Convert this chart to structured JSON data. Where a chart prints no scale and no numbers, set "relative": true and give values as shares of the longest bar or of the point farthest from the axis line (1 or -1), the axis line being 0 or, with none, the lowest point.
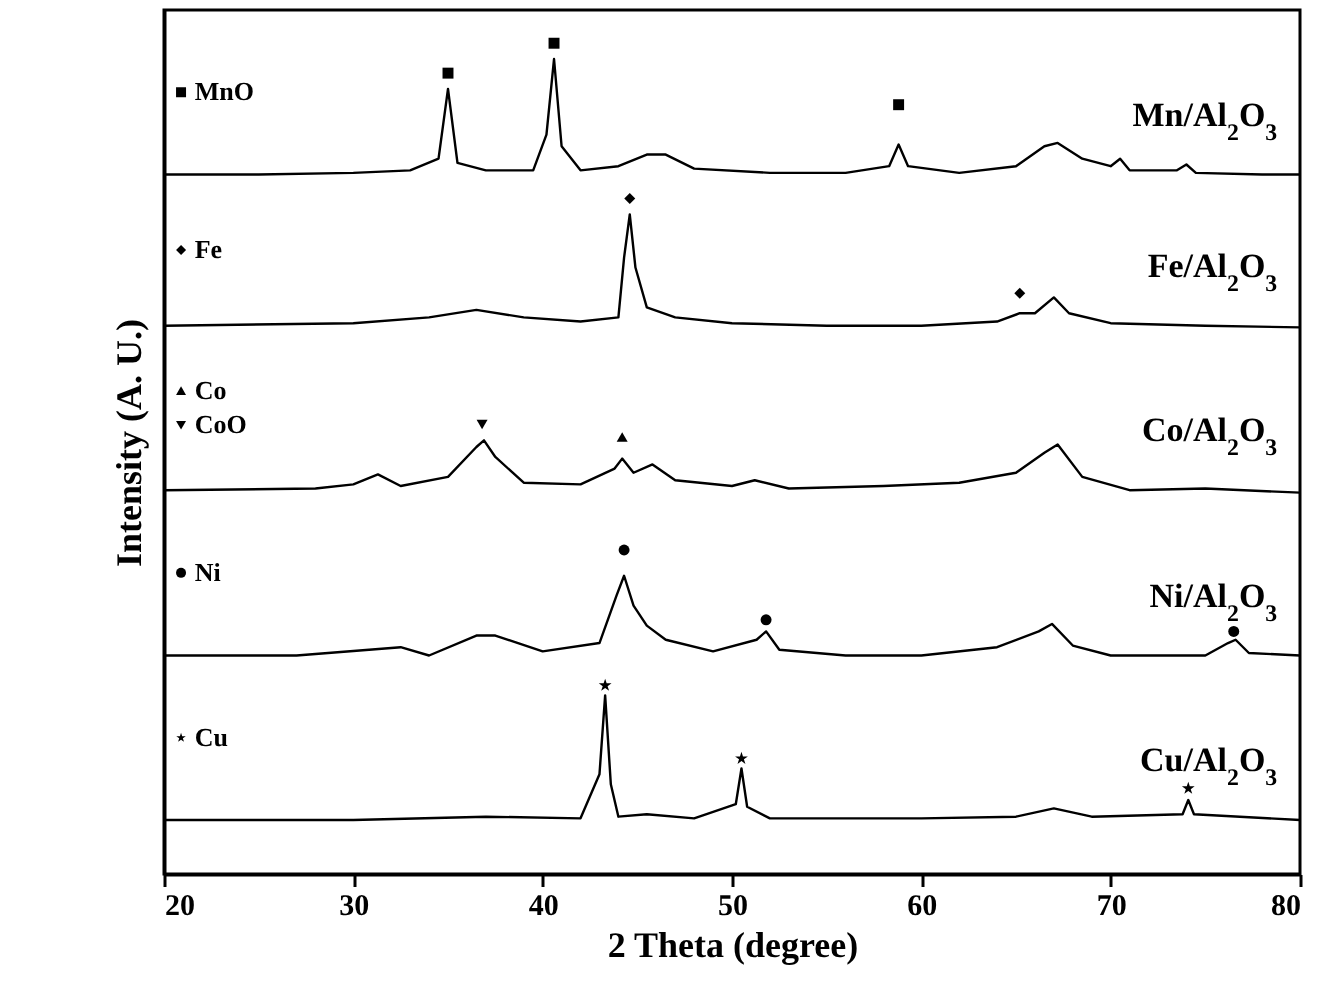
{
  "chart_data": {
    "type": "line",
    "relative": true,
    "xlabel": "2 Theta (degree)",
    "ylabel": "Intensity (A. U.)",
    "xlim": [
      20,
      80
    ],
    "xticks": [
      20,
      30,
      40,
      50,
      60,
      70,
      80
    ],
    "grid": false,
    "legend": "top left",
    "series": [
      {
        "name": "Mn/Al$_{2}$O$_{3}$",
        "type": "line",
        "color": "#000000",
        "x": [
          20,
          25,
          30,
          33,
          34.5,
          35,
          35.5,
          37,
          39.5,
          40.2,
          40.6,
          41,
          42,
          44,
          45.5,
          46.5,
          48,
          52,
          56,
          58.3,
          58.8,
          59.3,
          62,
          65,
          66.5,
          67.2,
          68.5,
          70,
          70.5,
          71,
          73.5,
          74,
          74.5,
          78,
          80
        ],
        "values": [
          0.842,
          0.842,
          0.844,
          0.847,
          0.861,
          0.945,
          0.856,
          0.847,
          0.847,
          0.89,
          0.981,
          0.876,
          0.847,
          0.852,
          0.866,
          0.866,
          0.849,
          0.844,
          0.844,
          0.852,
          0.878,
          0.852,
          0.844,
          0.852,
          0.876,
          0.88,
          0.861,
          0.852,
          0.861,
          0.847,
          0.847,
          0.854,
          0.844,
          0.842,
          0.842
        ]
      },
      {
        "name": "MnO",
        "type": "scatter",
        "marker": "square",
        "color": "#000000",
        "x": [
          35,
          40.6,
          58.8
        ],
        "values": [
          0.964,
          1.0,
          0.926
        ]
      },
      {
        "name": "Fe/Al$_{2}$O$_{3}$",
        "type": "line",
        "color": "#000000",
        "x": [
          20,
          30,
          34,
          36.5,
          39,
          42,
          44,
          44.3,
          44.6,
          44.9,
          45.5,
          47,
          50,
          55,
          60,
          64,
          65.2,
          66,
          67,
          67.8,
          70,
          75,
          80
        ],
        "values": [
          0.66,
          0.663,
          0.67,
          0.679,
          0.67,
          0.665,
          0.67,
          0.742,
          0.794,
          0.73,
          0.682,
          0.67,
          0.663,
          0.66,
          0.66,
          0.665,
          0.675,
          0.675,
          0.694,
          0.675,
          0.663,
          0.66,
          0.658
        ]
      },
      {
        "name": "Fe",
        "type": "scatter",
        "marker": "diamond",
        "color": "#000000",
        "x": [
          44.6,
          65.2
        ],
        "values": [
          0.813,
          0.699
        ]
      },
      {
        "name": "Co/Al$_{2}$O$_{3}$",
        "type": "line",
        "color": "#000000",
        "x": [
          20,
          28,
          30,
          31.3,
          32.5,
          35,
          36.5,
          36.9,
          37.5,
          39,
          42,
          43.8,
          44.2,
          44.8,
          45.8,
          47,
          50,
          51.2,
          53,
          58,
          62,
          65,
          66.5,
          67.2,
          68.5,
          71,
          75,
          80
        ],
        "values": [
          0.462,
          0.464,
          0.469,
          0.481,
          0.467,
          0.478,
          0.514,
          0.522,
          0.502,
          0.471,
          0.469,
          0.488,
          0.5,
          0.483,
          0.493,
          0.474,
          0.467,
          0.474,
          0.464,
          0.467,
          0.471,
          0.483,
          0.507,
          0.517,
          0.478,
          0.462,
          0.464,
          0.459
        ]
      },
      {
        "name": "Co",
        "type": "scatter",
        "marker": "triangle",
        "color": "#000000",
        "x": [
          44.2
        ],
        "values": [
          0.526
        ]
      },
      {
        "name": "CoO",
        "type": "scatter",
        "marker": "triangle-down",
        "color": "#000000",
        "x": [
          36.8
        ],
        "values": [
          0.541
        ]
      },
      {
        "name": "Ni/Al$_{2}$O$_{3}$",
        "type": "line",
        "color": "#000000",
        "x": [
          20,
          27,
          32.5,
          34,
          36.5,
          37.5,
          40,
          43,
          43.9,
          44.3,
          44.8,
          45.5,
          46.5,
          49,
          51.3,
          51.8,
          52.5,
          56,
          60,
          64,
          66.2,
          66.9,
          68,
          70,
          75,
          76.2,
          76.6,
          77.3,
          80
        ],
        "values": [
          0.263,
          0.263,
          0.273,
          0.263,
          0.287,
          0.287,
          0.268,
          0.278,
          0.335,
          0.359,
          0.323,
          0.299,
          0.282,
          0.268,
          0.282,
          0.292,
          0.27,
          0.263,
          0.263,
          0.273,
          0.292,
          0.301,
          0.275,
          0.263,
          0.263,
          0.278,
          0.282,
          0.266,
          0.263
        ]
      },
      {
        "name": "Ni",
        "type": "scatter",
        "marker": "circle",
        "color": "#000000",
        "x": [
          44.3,
          51.8,
          76.5
        ],
        "values": [
          0.39,
          0.306,
          0.292
        ]
      },
      {
        "name": "Cu/Al$_{2}$O$_{3}$",
        "type": "line",
        "color": "#000000",
        "x": [
          20,
          30,
          37,
          42,
          43,
          43.3,
          43.6,
          44,
          45.5,
          48,
          50.2,
          50.5,
          50.8,
          52,
          60,
          65,
          67,
          69,
          73.8,
          74.1,
          74.4,
          80
        ],
        "values": [
          0.065,
          0.065,
          0.069,
          0.067,
          0.12,
          0.215,
          0.108,
          0.069,
          0.072,
          0.067,
          0.084,
          0.127,
          0.081,
          0.067,
          0.067,
          0.069,
          0.079,
          0.069,
          0.072,
          0.089,
          0.072,
          0.065
        ]
      },
      {
        "name": "Cu",
        "type": "scatter",
        "marker": "star",
        "color": "#000000",
        "x": [
          43.3,
          50.5,
          74.1
        ],
        "values": [
          0.227,
          0.139,
          0.103
        ]
      }
    ]
  }
}
